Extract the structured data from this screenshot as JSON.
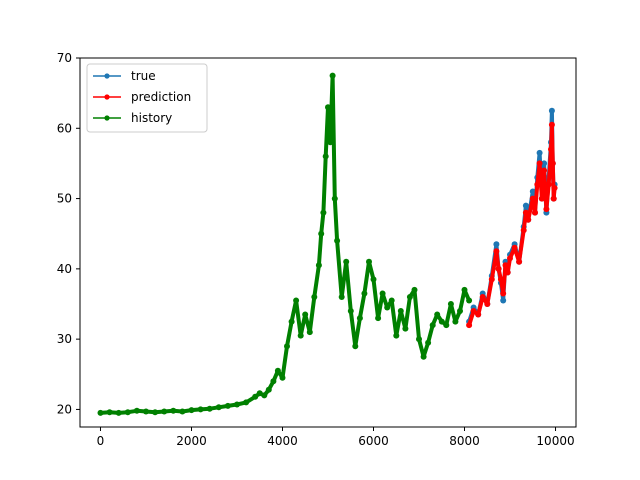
{
  "chart_data": {
    "type": "line",
    "title": "",
    "xlabel": "",
    "ylabel": "",
    "xlim": [
      -450,
      10450
    ],
    "ylim": [
      17.5,
      70
    ],
    "xticks": [
      0,
      2000,
      4000,
      6000,
      8000,
      10000
    ],
    "xtick_labels": [
      "0",
      "2000",
      "4000",
      "6000",
      "8000",
      "10000"
    ],
    "yticks": [
      20,
      30,
      40,
      50,
      60,
      70
    ],
    "ytick_labels": [
      "20",
      "30",
      "40",
      "50",
      "60",
      "70"
    ],
    "grid": false,
    "legend_position": "top-left",
    "series": [
      {
        "name": "true",
        "color": "#1f77b4",
        "marker": "circle",
        "x": [
          8100,
          8200,
          8300,
          8400,
          8500,
          8600,
          8700,
          8750,
          8800,
          8850,
          8900,
          8950,
          9000,
          9100,
          9200,
          9300,
          9350,
          9400,
          9500,
          9550,
          9600,
          9650,
          9700,
          9750,
          9800,
          9850,
          9900,
          9920,
          9940,
          9960,
          9980
        ],
        "y": [
          32.5,
          34.5,
          33.5,
          36.5,
          35,
          39,
          43.5,
          40,
          38,
          35.5,
          41,
          39.5,
          42,
          43.5,
          41,
          46,
          49,
          47,
          51,
          48,
          53,
          56.5,
          50,
          55,
          48,
          53,
          58,
          62.5,
          55,
          50,
          52
        ]
      },
      {
        "name": "prediction",
        "color": "#ff0000",
        "marker": "circle",
        "x": [
          8100,
          8200,
          8300,
          8400,
          8500,
          8600,
          8700,
          8750,
          8800,
          8850,
          8900,
          8950,
          9000,
          9100,
          9200,
          9300,
          9350,
          9400,
          9500,
          9550,
          9600,
          9650,
          9700,
          9750,
          9800,
          9850,
          9900,
          9920,
          9940,
          9960,
          9980
        ],
        "y": [
          32,
          34,
          33.5,
          36,
          35,
          38.5,
          42.5,
          40,
          38.5,
          36.5,
          40.5,
          39.5,
          41.5,
          43,
          41,
          45.5,
          48,
          47,
          50,
          48,
          52,
          55,
          50,
          54,
          48.5,
          52,
          57,
          60.5,
          55,
          50,
          51.5
        ]
      },
      {
        "name": "history",
        "color": "#008000",
        "marker": "circle",
        "x": [
          0,
          200,
          400,
          600,
          800,
          1000,
          1200,
          1400,
          1600,
          1800,
          2000,
          2200,
          2400,
          2600,
          2800,
          3000,
          3200,
          3400,
          3500,
          3600,
          3700,
          3800,
          3900,
          4000,
          4100,
          4200,
          4300,
          4400,
          4500,
          4600,
          4700,
          4800,
          4850,
          4900,
          4950,
          5000,
          5050,
          5100,
          5150,
          5200,
          5300,
          5400,
          5500,
          5600,
          5700,
          5800,
          5900,
          6000,
          6100,
          6200,
          6300,
          6400,
          6500,
          6600,
          6700,
          6800,
          6900,
          7000,
          7100,
          7200,
          7300,
          7400,
          7500,
          7600,
          7700,
          7800,
          7900,
          8000,
          8100
        ],
        "y": [
          19.5,
          19.6,
          19.5,
          19.6,
          19.8,
          19.7,
          19.6,
          19.7,
          19.8,
          19.7,
          19.9,
          20.0,
          20.1,
          20.3,
          20.5,
          20.7,
          21.0,
          21.8,
          22.3,
          22.0,
          22.8,
          24.0,
          25.5,
          24.5,
          29.0,
          32.5,
          35.5,
          30.5,
          33.5,
          31.0,
          36.0,
          40.5,
          45.0,
          48.0,
          56.0,
          63.0,
          58.0,
          67.5,
          50.0,
          44.0,
          36.0,
          41.0,
          34.0,
          29.0,
          33.0,
          36.5,
          41.0,
          38.5,
          33.0,
          36.5,
          34.5,
          35.5,
          30.5,
          34.0,
          31.5,
          36.0,
          37.0,
          30.0,
          27.5,
          29.5,
          32.0,
          33.5,
          32.5,
          32.0,
          35.0,
          32.5,
          34.0,
          37.0,
          35.5
        ]
      }
    ]
  }
}
